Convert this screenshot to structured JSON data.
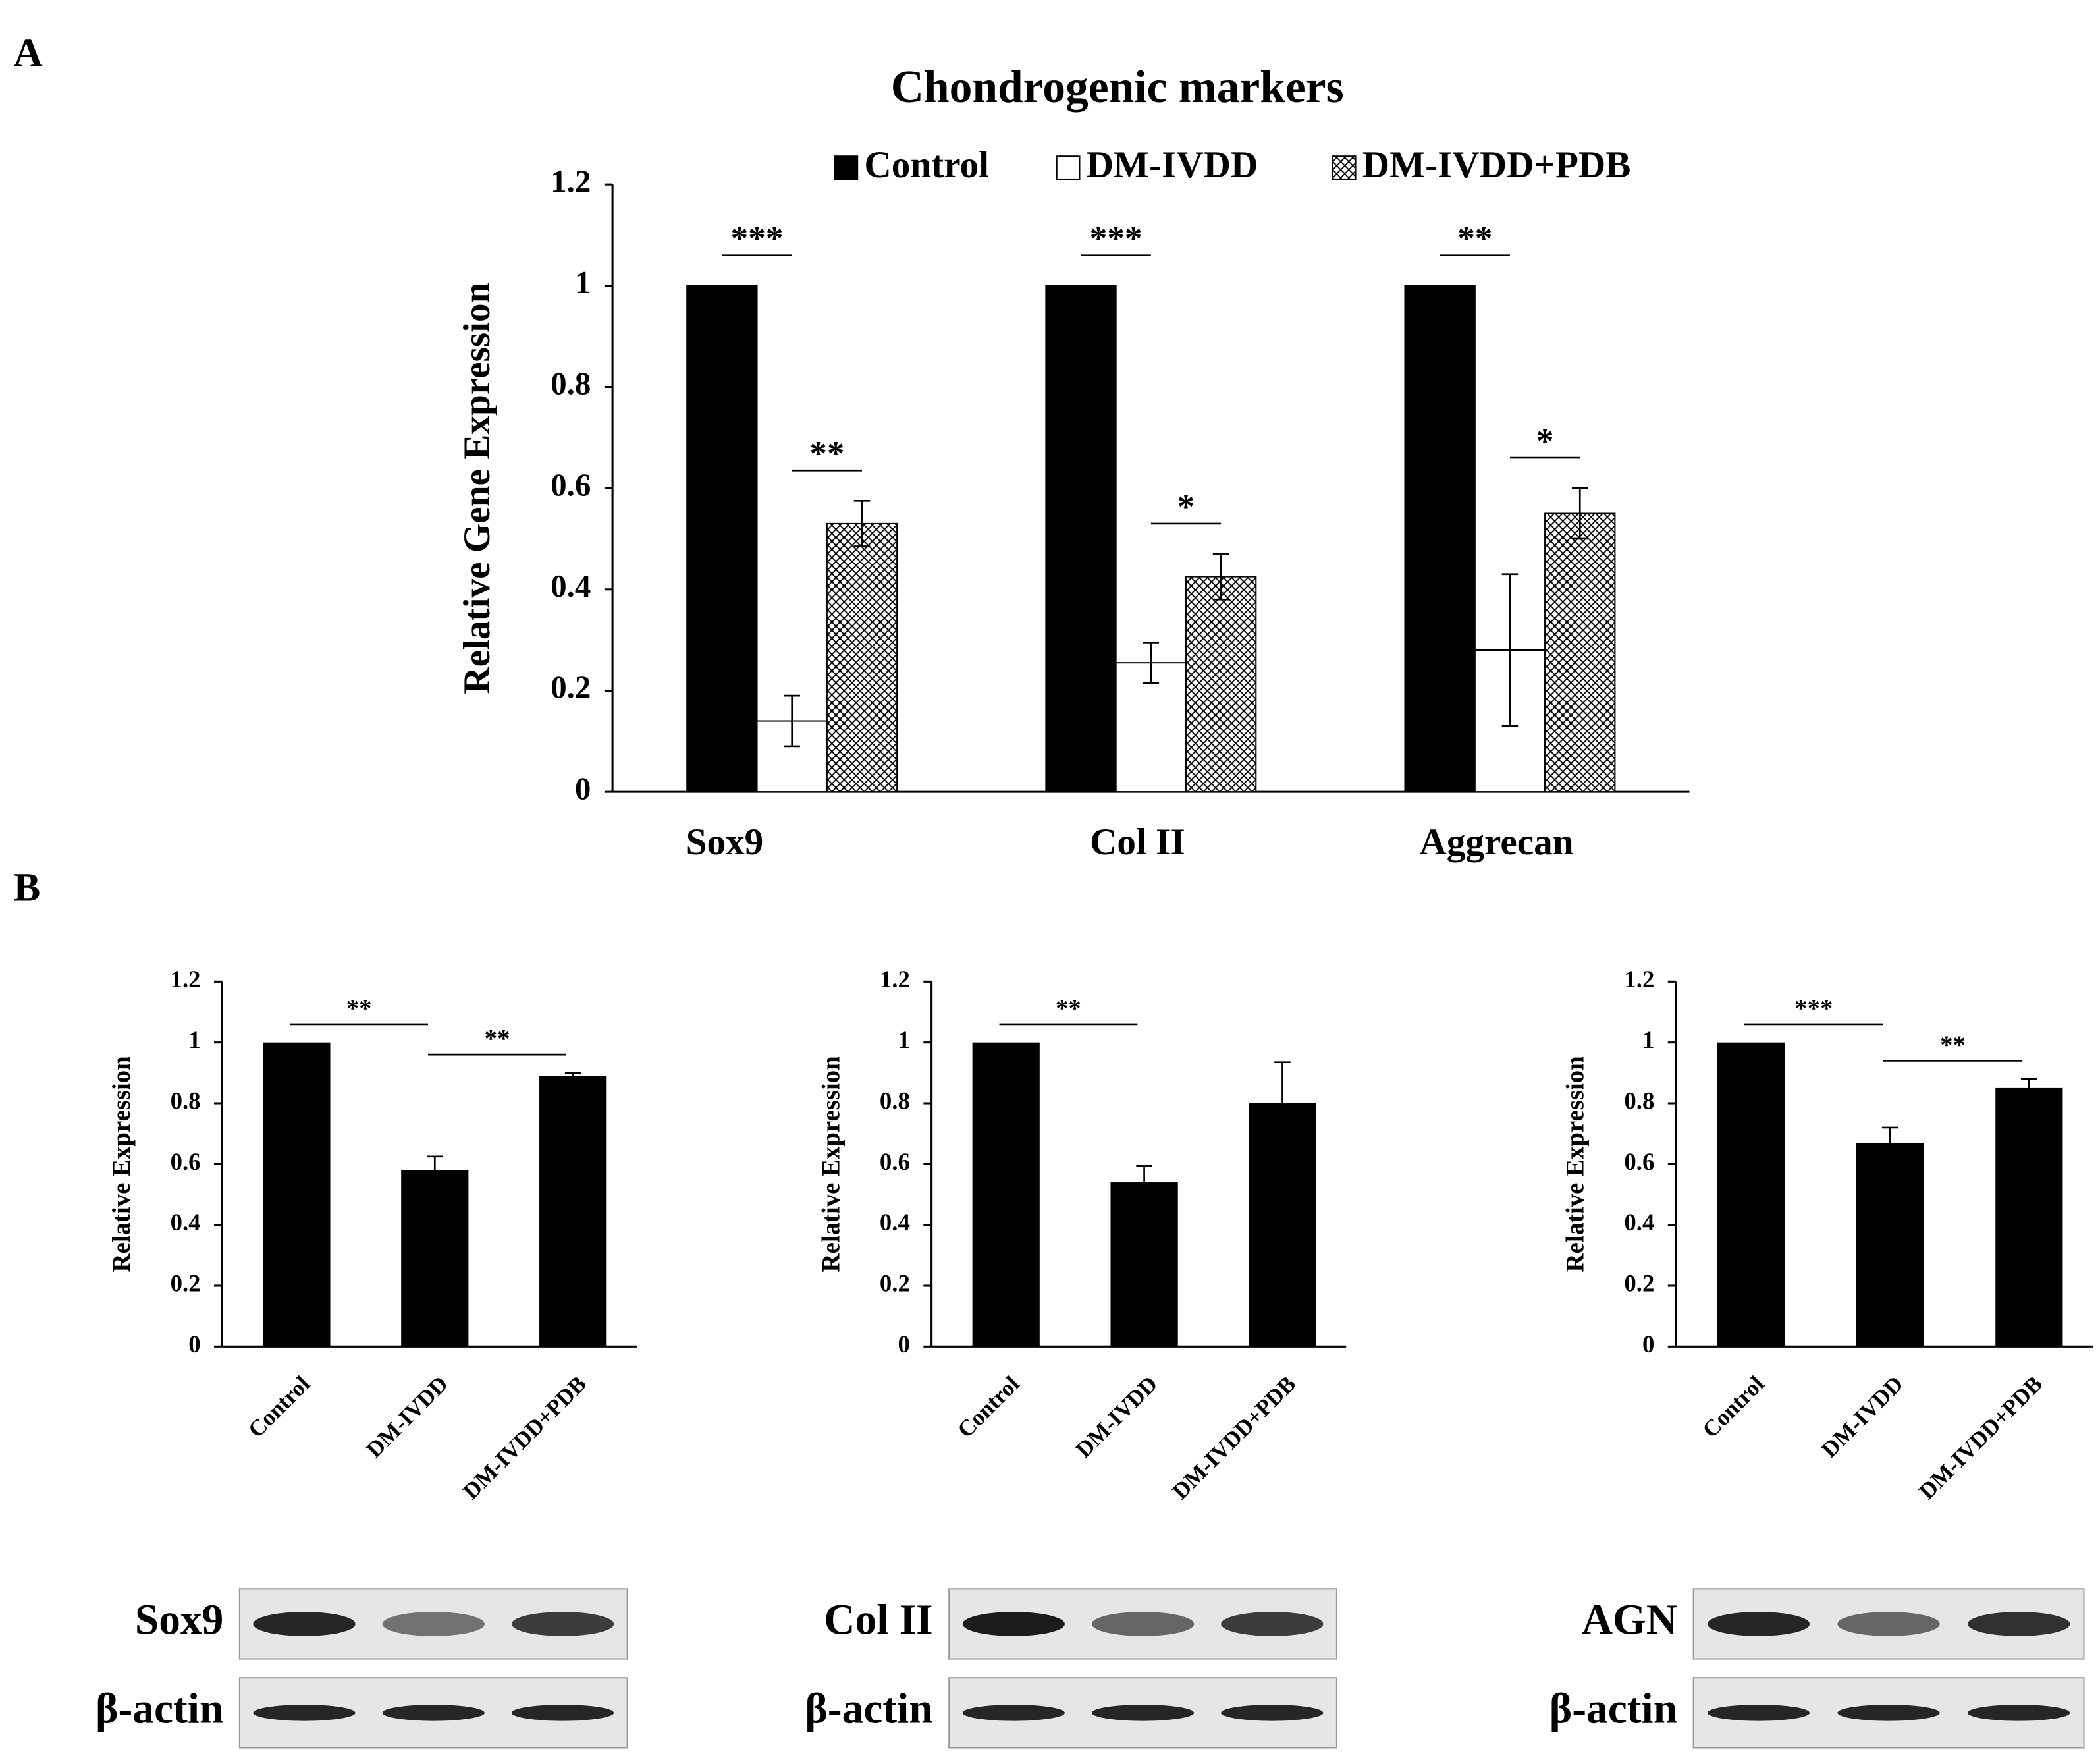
{
  "panels": [
    "A",
    "B"
  ],
  "chart_data": [
    {
      "type": "bar",
      "title": "Chondrogenic markers",
      "y_label": "Relative Gene Expression",
      "categories": [
        "Sox9",
        "Col II",
        "Aggrecan"
      ],
      "series": [
        {
          "name": "Control",
          "color": "#000000",
          "values": [
            1,
            1,
            1
          ]
        },
        {
          "name": "DM-IVDD",
          "color": "#ffffff",
          "values": [
            0.14,
            0.255,
            0.28
          ],
          "errors": [
            0.05,
            0.04,
            0.15
          ]
        },
        {
          "name": "DM-IVDD+PDB",
          "color": "#ffffff",
          "pattern": "crosshatch",
          "values": [
            0.53,
            0.425,
            0.55
          ],
          "errors": [
            0.045,
            0.045,
            0.05
          ]
        }
      ],
      "annotations": [
        {
          "label": "***",
          "category": 0,
          "series": [
            0,
            1
          ]
        },
        {
          "label": "**",
          "category": 0,
          "series": [
            1,
            2
          ]
        },
        {
          "label": "***",
          "category": 1,
          "series": [
            0,
            1
          ]
        },
        {
          "label": "*",
          "category": 1,
          "series": [
            1,
            2
          ]
        },
        {
          "label": "**",
          "category": 2,
          "series": [
            0,
            1
          ]
        },
        {
          "label": "*",
          "category": 2,
          "series": [
            1,
            2
          ]
        }
      ],
      "ylim": [
        0,
        1.2
      ],
      "yticks": [
        0,
        0.2,
        0.4,
        0.6,
        0.8,
        1,
        1.2
      ],
      "legend": "top"
    },
    {
      "type": "bar",
      "y_label": "Relative Expression",
      "color": "#000000",
      "categories": [
        "Control",
        "DM-IVDD",
        "DM-IVDD+PDB"
      ],
      "values": [
        1,
        0.58,
        0.89
      ],
      "errors": [
        null,
        0.045,
        0.01
      ],
      "annotations": [
        {
          "label": "**",
          "categories": [
            0,
            1
          ]
        },
        {
          "label": "**",
          "categories": [
            1,
            2
          ]
        }
      ],
      "ylim": [
        0,
        1.2
      ],
      "yticks": [
        0,
        0.2,
        0.4,
        0.6,
        0.8,
        1,
        1.2
      ],
      "blot": [
        "Sox9",
        "β-actin"
      ]
    },
    {
      "type": "bar",
      "y_label": "Relative Expression",
      "color": "#000000",
      "categories": [
        "Control",
        "DM-IVDD",
        "DM-IVDD+PDB"
      ],
      "values": [
        1,
        0.54,
        0.8
      ],
      "errors": [
        null,
        0.055,
        0.135
      ],
      "annotations": [
        {
          "label": "**",
          "categories": [
            0,
            1
          ]
        }
      ],
      "ylim": [
        0,
        1.2
      ],
      "yticks": [
        0,
        0.2,
        0.4,
        0.6,
        0.8,
        1,
        1.2
      ],
      "blot": [
        "Col II",
        "β-actin"
      ]
    },
    {
      "type": "bar",
      "y_label": "Relative Expression",
      "color": "#000000",
      "categories": [
        "Control",
        "DM-IVDD",
        "DM-IVDD+PDB"
      ],
      "values": [
        1,
        0.67,
        0.85
      ],
      "errors": [
        null,
        0.05,
        0.03
      ],
      "annotations": [
        {
          "label": "***",
          "categories": [
            0,
            1
          ]
        },
        {
          "label": "**",
          "categories": [
            1,
            2
          ]
        }
      ],
      "ylim": [
        0,
        1.2
      ],
      "yticks": [
        0,
        0.2,
        0.4,
        0.6,
        0.8,
        1,
        1.2
      ],
      "blot": [
        "AGN",
        "β-actin"
      ]
    }
  ]
}
